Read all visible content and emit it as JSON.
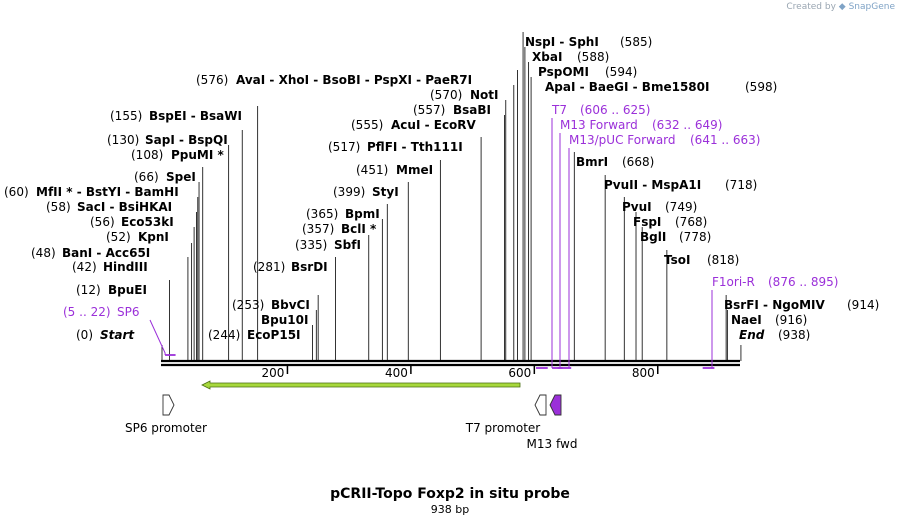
{
  "credit": {
    "prefix": "Created by",
    "brand": "SnapGene"
  },
  "map": {
    "title": "pCRII-Topo Foxp2 in situ probe",
    "length_label": "938 bp",
    "length": 938,
    "ticks": [
      200,
      400,
      600,
      800
    ]
  },
  "sites": [
    {
      "pos": "(0)",
      "name": "Start",
      "bp": 0
    },
    {
      "pos": "(12)",
      "name": "BpuEI",
      "bp": 12
    },
    {
      "pos": "(42)",
      "name": "HindIII",
      "bp": 42
    },
    {
      "pos": "(48)",
      "name": "BanI  -  Acc65I",
      "bp": 48
    },
    {
      "pos": "(52)",
      "name": "KpnI",
      "bp": 52
    },
    {
      "pos": "(56)",
      "name": "Eco53kI",
      "bp": 56
    },
    {
      "pos": "(58)",
      "name": "SacI  -  BsiHKAI",
      "bp": 58
    },
    {
      "pos": "(60)",
      "name": "MfII * - BstYI  -  BamHI",
      "bp": 60
    },
    {
      "pos": "(66)",
      "name": "SpeI",
      "bp": 66
    },
    {
      "pos": "(108)",
      "name": "PpuMI *",
      "bp": 108
    },
    {
      "pos": "(130)",
      "name": "SapI  -  BspQI",
      "bp": 130
    },
    {
      "pos": "(155)",
      "name": "BspEI  -  BsaWI",
      "bp": 155
    },
    {
      "pos": "(244)",
      "name": "EcoP15I",
      "bp": 244
    },
    {
      "pos": "",
      "name": "Bpu10I",
      "bp": 250
    },
    {
      "pos": "(253)",
      "name": "BbvCI",
      "bp": 253
    },
    {
      "pos": "(281)",
      "name": "BsrDI",
      "bp": 281
    },
    {
      "pos": "(335)",
      "name": "SbfI",
      "bp": 335
    },
    {
      "pos": "(357)",
      "name": "BclI *",
      "bp": 357
    },
    {
      "pos": "(365)",
      "name": "BpmI",
      "bp": 365
    },
    {
      "pos": "(399)",
      "name": "StyI",
      "bp": 399
    },
    {
      "pos": "(451)",
      "name": "MmeI",
      "bp": 451
    },
    {
      "pos": "(517)",
      "name": "PflFI  -  Tth111I",
      "bp": 517
    },
    {
      "pos": "(555)",
      "name": "AcuI  -  EcoRV",
      "bp": 555
    },
    {
      "pos": "(557)",
      "name": "BsaBI",
      "bp": 557
    },
    {
      "pos": "(570)",
      "name": "NotI",
      "bp": 570
    },
    {
      "pos": "(576)",
      "name": "AvaI  -  XhoI  -  BsoBI  -  PspXI  -  PaeR7I",
      "bp": 576
    },
    {
      "pos": "(585)",
      "name": "NspI  -  SphI",
      "bp": 585
    },
    {
      "pos": "(588)",
      "name": "XbaI",
      "bp": 588
    },
    {
      "pos": "(594)",
      "name": "PspOMI",
      "bp": 594
    },
    {
      "pos": "(598)",
      "name": "ApaI  -  BaeGI  -  Bme1580I",
      "bp": 598
    },
    {
      "pos": "(668)",
      "name": "BmrI",
      "bp": 668
    },
    {
      "pos": "(718)",
      "name": "PvuII  -  MspA1I",
      "bp": 718
    },
    {
      "pos": "(749)",
      "name": "PvuI",
      "bp": 749
    },
    {
      "pos": "(768)",
      "name": "FspI",
      "bp": 768
    },
    {
      "pos": "(778)",
      "name": "BglI",
      "bp": 778
    },
    {
      "pos": "(818)",
      "name": "TsoI",
      "bp": 818
    },
    {
      "pos": "(914)",
      "name": "BsrFI  -  NgoMIV",
      "bp": 914
    },
    {
      "pos": "(916)",
      "name": "NaeI",
      "bp": 916
    },
    {
      "pos": "(938)",
      "name": "End",
      "bp": 938
    }
  ],
  "primers": [
    {
      "name": "SP6",
      "range": "(5 .. 22)",
      "start": 5,
      "end": 22
    },
    {
      "name": "T7",
      "range": "(606 .. 625)",
      "start": 606,
      "end": 625
    },
    {
      "name": "M13 Forward",
      "range": "(632 .. 649)",
      "start": 632,
      "end": 649
    },
    {
      "name": "M13/pUC Forward",
      "range": "(641 .. 663)",
      "start": 641,
      "end": 663
    },
    {
      "name": "F1ori-R",
      "range": "(876 .. 895)",
      "start": 876,
      "end": 895
    }
  ],
  "features": [
    {
      "name": "SP6 promoter",
      "start": 0,
      "end": 19,
      "color": "#ffffff"
    },
    {
      "name": "T7 promoter",
      "start": 606,
      "end": 625,
      "color": "#ffffff"
    },
    {
      "name": "M13 fwd",
      "start": 632,
      "end": 649,
      "color": "#9b30d9"
    }
  ],
  "insert": {
    "start": 64,
    "end": 583,
    "color": "#a7d83c"
  },
  "colors": {
    "primer": "#9b30d9",
    "line": "#000000"
  }
}
